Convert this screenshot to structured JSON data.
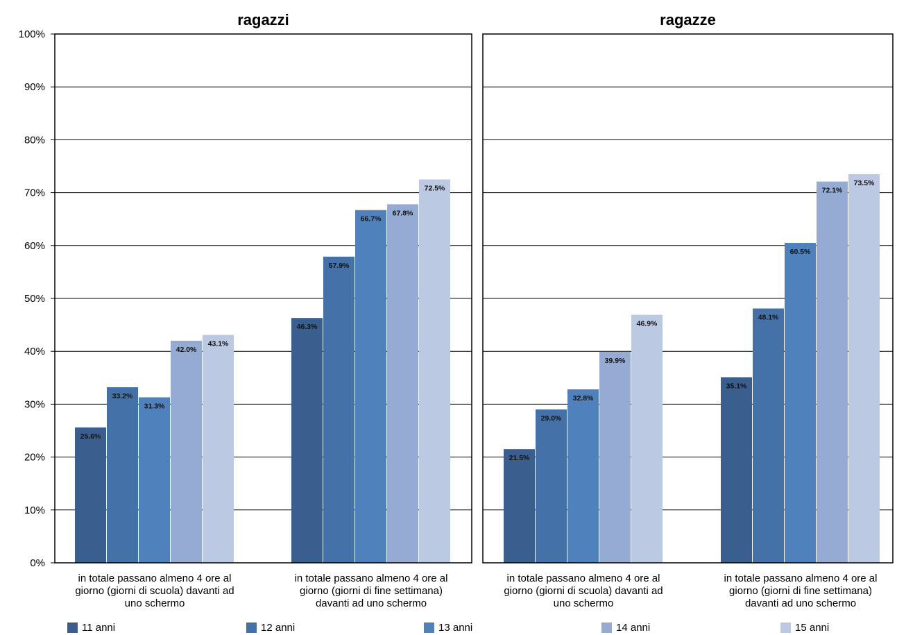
{
  "chart_data": [
    {
      "type": "bar",
      "title": "ragazzi",
      "categories": [
        "in totale passano almeno 4 ore al giorno (giorni di scuola) davanti ad uno schermo",
        "in totale passano almeno 4 ore al giorno (giorni di fine settimana) davanti ad uno schermo"
      ],
      "category_lines": [
        [
          "in totale passano almeno 4 ore al",
          "giorno (giorni di scuola) davanti ad",
          "uno schermo"
        ],
        [
          "in totale passano almeno 4 ore al",
          "giorno (giorni di fine settimana)",
          "davanti ad uno schermo"
        ]
      ],
      "series": [
        {
          "name": "11 anni",
          "values": [
            25.6,
            46.3
          ],
          "labels": [
            "25.6%",
            "46.3%"
          ]
        },
        {
          "name": "12 anni",
          "values": [
            33.2,
            57.9
          ],
          "labels": [
            "33.2%",
            "57.9%"
          ]
        },
        {
          "name": "13 anni",
          "values": [
            31.3,
            66.7
          ],
          "labels": [
            "31.3%",
            "66.7%"
          ]
        },
        {
          "name": "14 anni",
          "values": [
            42.0,
            67.8
          ],
          "labels": [
            "42.0%",
            "67.8%"
          ]
        },
        {
          "name": "15 anni",
          "values": [
            43.1,
            72.5
          ],
          "labels": [
            "43.1%",
            "72.5%"
          ]
        }
      ],
      "ylim": [
        0,
        100
      ],
      "yticks": [
        "0%",
        "10%",
        "20%",
        "30%",
        "40%",
        "50%",
        "60%",
        "70%",
        "80%",
        "90%",
        "100%"
      ],
      "grid": true
    },
    {
      "type": "bar",
      "title": "ragazze",
      "categories": [
        "in totale passano almeno 4 ore al giorno (giorni di scuola) davanti ad uno schermo",
        "in totale passano almeno 4 ore al giorno (giorni di fine settimana) davanti ad uno schermo"
      ],
      "category_lines": [
        [
          "in totale passano almeno 4 ore al",
          "giorno (giorni di scuola) davanti ad",
          "uno schermo"
        ],
        [
          "in totale passano almeno 4 ore al",
          "giorno (giorni di fine settimana)",
          "davanti ad uno schermo"
        ]
      ],
      "series": [
        {
          "name": "11 anni",
          "values": [
            21.5,
            35.1
          ],
          "labels": [
            "21.5%",
            "35.1%"
          ]
        },
        {
          "name": "12 anni",
          "values": [
            29.0,
            48.1
          ],
          "labels": [
            "29.0%",
            "48.1%"
          ]
        },
        {
          "name": "13 anni",
          "values": [
            32.8,
            60.5
          ],
          "labels": [
            "32.8%",
            "60.5%"
          ]
        },
        {
          "name": "14 anni",
          "values": [
            39.9,
            72.1
          ],
          "labels": [
            "39.9%",
            "72.1%"
          ]
        },
        {
          "name": "15 anni",
          "values": [
            46.9,
            73.5
          ],
          "labels": [
            "46.9%",
            "73.5%"
          ]
        }
      ],
      "ylim": [
        0,
        100
      ],
      "grid": true
    }
  ],
  "legend": {
    "placement": "bottom",
    "items": [
      {
        "label": "11 anni",
        "color": "#3a5f8f"
      },
      {
        "label": "12 anni",
        "color": "#4472a8"
      },
      {
        "label": "13 anni",
        "color": "#4f81bd"
      },
      {
        "label": "14 anni",
        "color": "#95abd3"
      },
      {
        "label": "15 anni",
        "color": "#bcc9e2"
      }
    ]
  }
}
